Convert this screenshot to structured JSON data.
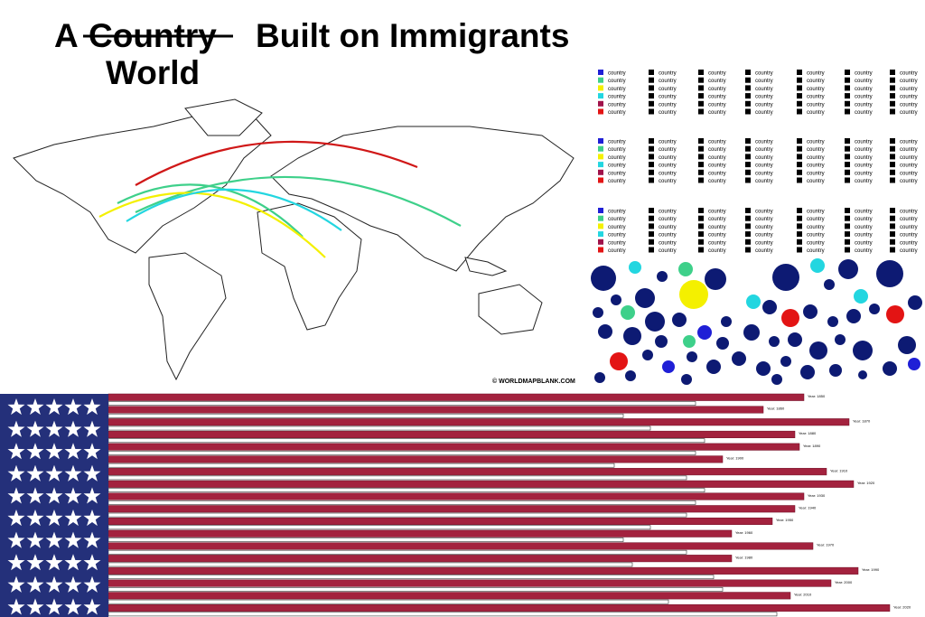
{
  "title": {
    "prefix": "A",
    "struck": "Country",
    "rest": "Built on Immigrants",
    "replacement": "World"
  },
  "map_credit": "© WORLDMAPBLANK.COM",
  "legend": {
    "key_colors": [
      "#1f1fd6",
      "#3ed08a",
      "#f4f000",
      "#23d6e0",
      "#a0124a",
      "#e31414"
    ],
    "plain_color": "#000000",
    "blocks": [
      [
        "country",
        "country",
        "country",
        "country",
        "country",
        "country"
      ],
      [
        "country",
        "country",
        "country",
        "country",
        "country",
        "country"
      ],
      [
        "country",
        "country",
        "country",
        "country",
        "country",
        "country"
      ],
      [
        "country",
        "country",
        "country",
        "country",
        "country",
        "country"
      ],
      [
        "country",
        "country",
        "country",
        "country",
        "country",
        "country"
      ],
      [
        "country",
        "country",
        "country",
        "country",
        "country",
        "country"
      ],
      [
        "country",
        "country",
        "country",
        "country",
        "country",
        "country"
      ],
      [
        "country",
        "country",
        "country",
        "country",
        "country",
        "country"
      ],
      [
        "country",
        "country",
        "country",
        "country",
        "country",
        "country"
      ],
      [
        "country",
        "country",
        "country",
        "country",
        "country",
        "country"
      ],
      [
        "country",
        "country",
        "country",
        "country",
        "country",
        "country"
      ],
      [
        "country",
        "country",
        "country",
        "country",
        "country",
        "country"
      ],
      [
        "country",
        "country",
        "country",
        "country",
        "country",
        "country"
      ],
      [
        "country",
        "country",
        "country",
        "country",
        "country",
        "country"
      ],
      [
        "country",
        "country",
        "country",
        "country",
        "country",
        "country"
      ],
      [
        "country",
        "country",
        "country",
        "country",
        "country",
        "country"
      ],
      [
        "country",
        "country",
        "country",
        "country",
        "country",
        "country"
      ],
      [
        "country",
        "country",
        "country",
        "country",
        "country",
        "country"
      ],
      [
        "country",
        "country",
        "country",
        "country",
        "country",
        "country"
      ],
      [
        "country",
        "country",
        "country",
        "country",
        "country",
        "country"
      ],
      [
        "country",
        "country",
        "country",
        "country",
        "country",
        "country"
      ]
    ]
  },
  "bars": {
    "labels": [
      "Year: 1850",
      "Year: 1860",
      "Year: 1870",
      "Year: 1880",
      "Year: 1890",
      "Year: 1900",
      "Year: 1910",
      "Year: 1920",
      "Year: 1930",
      "Year: 1940",
      "Year: 1950",
      "Year: 1960",
      "Year: 1970",
      "Year: 1980",
      "Year: 1990",
      "Year: 2000",
      "Year: 2010",
      "Year: 2020"
    ]
  }
}
